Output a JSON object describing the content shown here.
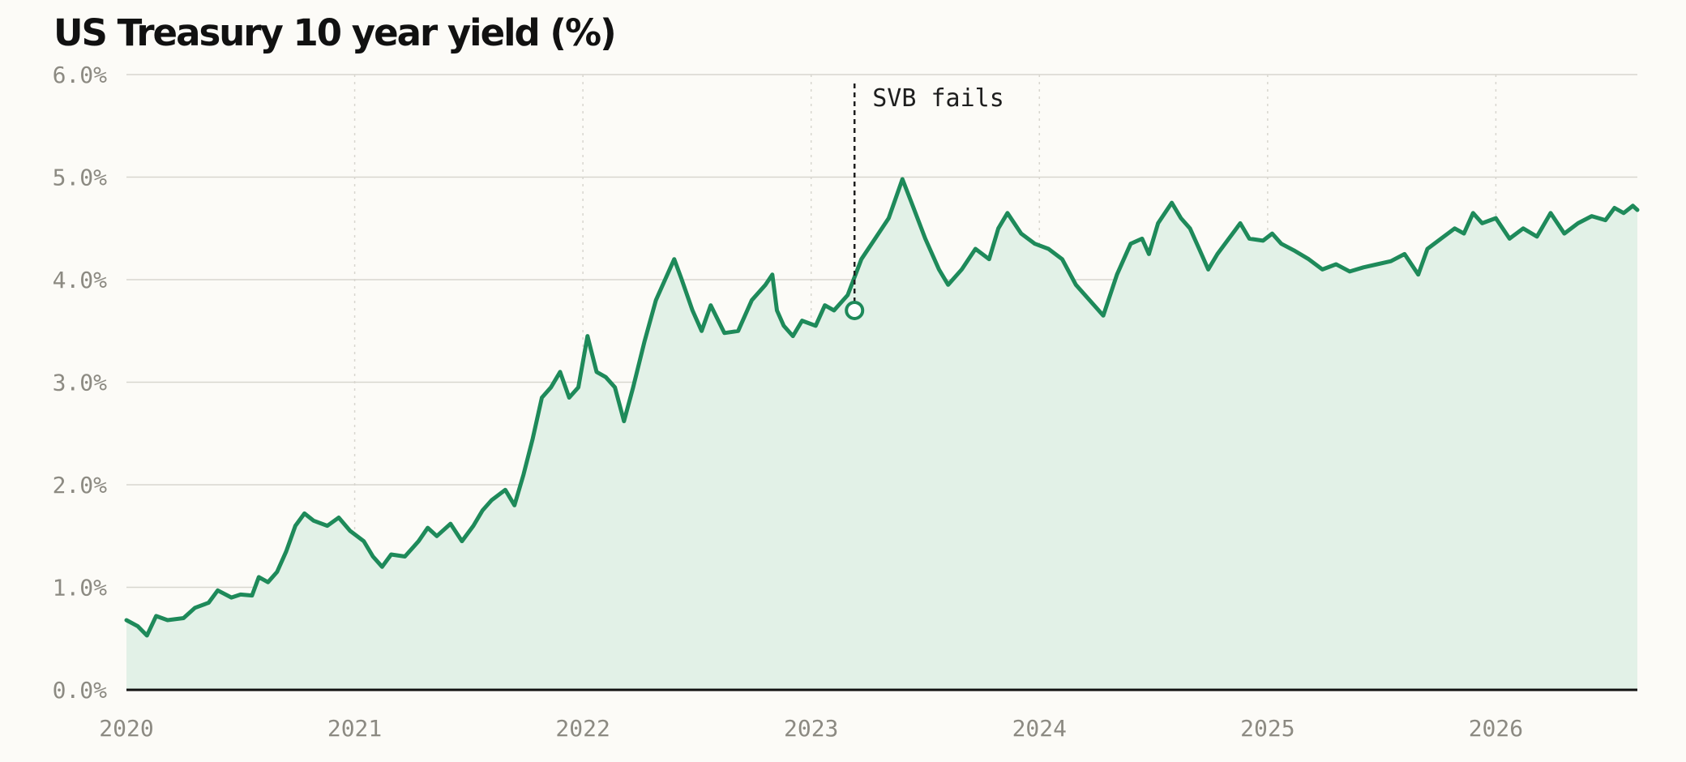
{
  "chart_data": {
    "type": "area",
    "title": "US Treasury 10 year yield (%)",
    "xlabel": "",
    "ylabel": "",
    "xlim": [
      2020.0,
      2026.62
    ],
    "ylim": [
      0,
      6
    ],
    "x_ticks": [
      2020,
      2021,
      2022,
      2023,
      2024,
      2025,
      2026
    ],
    "y_ticks": [
      0,
      1,
      2,
      3,
      4,
      5,
      6
    ],
    "y_tick_labels": [
      "0.0%",
      "1.0%",
      "2.0%",
      "3.0%",
      "4.0%",
      "5.0%",
      "6.0%"
    ],
    "grid": {
      "horizontal": true,
      "vertical_dotted": true
    },
    "series": [
      {
        "points": [
          [
            2020.0,
            0.68
          ],
          [
            2020.05,
            0.62
          ],
          [
            2020.09,
            0.53
          ],
          [
            2020.13,
            0.72
          ],
          [
            2020.18,
            0.68
          ],
          [
            2020.25,
            0.7
          ],
          [
            2020.3,
            0.8
          ],
          [
            2020.36,
            0.85
          ],
          [
            2020.4,
            0.97
          ],
          [
            2020.46,
            0.9
          ],
          [
            2020.5,
            0.93
          ],
          [
            2020.55,
            0.92
          ],
          [
            2020.58,
            1.1
          ],
          [
            2020.62,
            1.05
          ],
          [
            2020.66,
            1.15
          ],
          [
            2020.7,
            1.35
          ],
          [
            2020.74,
            1.6
          ],
          [
            2020.78,
            1.72
          ],
          [
            2020.82,
            1.65
          ],
          [
            2020.88,
            1.6
          ],
          [
            2020.93,
            1.68
          ],
          [
            2020.98,
            1.55
          ],
          [
            2021.04,
            1.45
          ],
          [
            2021.08,
            1.3
          ],
          [
            2021.12,
            1.2
          ],
          [
            2021.16,
            1.32
          ],
          [
            2021.22,
            1.3
          ],
          [
            2021.28,
            1.45
          ],
          [
            2021.32,
            1.58
          ],
          [
            2021.36,
            1.5
          ],
          [
            2021.42,
            1.62
          ],
          [
            2021.47,
            1.45
          ],
          [
            2021.52,
            1.6
          ],
          [
            2021.56,
            1.75
          ],
          [
            2021.6,
            1.85
          ],
          [
            2021.66,
            1.95
          ],
          [
            2021.7,
            1.8
          ],
          [
            2021.74,
            2.1
          ],
          [
            2021.78,
            2.45
          ],
          [
            2021.82,
            2.85
          ],
          [
            2021.86,
            2.95
          ],
          [
            2021.9,
            3.1
          ],
          [
            2021.94,
            2.85
          ],
          [
            2021.98,
            2.95
          ],
          [
            2022.02,
            3.45
          ],
          [
            2022.06,
            3.1
          ],
          [
            2022.1,
            3.05
          ],
          [
            2022.14,
            2.95
          ],
          [
            2022.18,
            2.62
          ],
          [
            2022.22,
            2.95
          ],
          [
            2022.27,
            3.4
          ],
          [
            2022.32,
            3.8
          ],
          [
            2022.36,
            4.0
          ],
          [
            2022.4,
            4.2
          ],
          [
            2022.43,
            4.02
          ],
          [
            2022.48,
            3.7
          ],
          [
            2022.52,
            3.5
          ],
          [
            2022.56,
            3.75
          ],
          [
            2022.62,
            3.48
          ],
          [
            2022.68,
            3.5
          ],
          [
            2022.74,
            3.8
          ],
          [
            2022.8,
            3.95
          ],
          [
            2022.83,
            4.05
          ],
          [
            2022.85,
            3.7
          ],
          [
            2022.88,
            3.55
          ],
          [
            2022.92,
            3.45
          ],
          [
            2022.96,
            3.6
          ],
          [
            2023.02,
            3.55
          ],
          [
            2023.06,
            3.75
          ],
          [
            2023.1,
            3.7
          ],
          [
            2023.16,
            3.85
          ],
          [
            2023.22,
            4.2
          ],
          [
            2023.28,
            4.4
          ],
          [
            2023.34,
            4.6
          ],
          [
            2023.4,
            4.98
          ],
          [
            2023.44,
            4.75
          ],
          [
            2023.5,
            4.4
          ],
          [
            2023.56,
            4.1
          ],
          [
            2023.6,
            3.95
          ],
          [
            2023.66,
            4.1
          ],
          [
            2023.72,
            4.3
          ],
          [
            2023.78,
            4.2
          ],
          [
            2023.82,
            4.5
          ],
          [
            2023.86,
            4.65
          ],
          [
            2023.92,
            4.45
          ],
          [
            2023.98,
            4.35
          ],
          [
            2024.04,
            4.3
          ],
          [
            2024.1,
            4.2
          ],
          [
            2024.16,
            3.95
          ],
          [
            2024.22,
            3.8
          ],
          [
            2024.28,
            3.65
          ],
          [
            2024.34,
            4.05
          ],
          [
            2024.4,
            4.35
          ],
          [
            2024.45,
            4.4
          ],
          [
            2024.48,
            4.25
          ],
          [
            2024.52,
            4.55
          ],
          [
            2024.58,
            4.75
          ],
          [
            2024.62,
            4.6
          ],
          [
            2024.66,
            4.5
          ],
          [
            2024.7,
            4.3
          ],
          [
            2024.74,
            4.1
          ],
          [
            2024.78,
            4.25
          ],
          [
            2024.83,
            4.4
          ],
          [
            2024.88,
            4.55
          ],
          [
            2024.92,
            4.4
          ],
          [
            2024.98,
            4.38
          ],
          [
            2025.02,
            4.45
          ],
          [
            2025.06,
            4.35
          ],
          [
            2025.12,
            4.28
          ],
          [
            2025.18,
            4.2
          ],
          [
            2025.24,
            4.1
          ],
          [
            2025.3,
            4.15
          ],
          [
            2025.36,
            4.08
          ],
          [
            2025.42,
            4.12
          ],
          [
            2025.48,
            4.15
          ],
          [
            2025.54,
            4.18
          ],
          [
            2025.6,
            4.25
          ],
          [
            2025.66,
            4.05
          ],
          [
            2025.7,
            4.3
          ],
          [
            2025.76,
            4.4
          ],
          [
            2025.82,
            4.5
          ],
          [
            2025.86,
            4.45
          ],
          [
            2025.9,
            4.65
          ],
          [
            2025.94,
            4.55
          ],
          [
            2026.0,
            4.6
          ],
          [
            2026.06,
            4.4
          ],
          [
            2026.12,
            4.5
          ],
          [
            2026.18,
            4.42
          ],
          [
            2026.24,
            4.65
          ],
          [
            2026.3,
            4.45
          ],
          [
            2026.36,
            4.55
          ],
          [
            2026.42,
            4.62
          ],
          [
            2026.48,
            4.58
          ],
          [
            2026.52,
            4.7
          ],
          [
            2026.56,
            4.65
          ],
          [
            2026.6,
            4.72
          ],
          [
            2026.62,
            4.68
          ]
        ]
      }
    ],
    "annotation": {
      "label": "SVB fails",
      "x": 2023.19,
      "y": 3.7
    }
  },
  "colors": {
    "line": "#1e8a5a",
    "fill": "#e2f1e7",
    "grid": "#d8d6cf",
    "axis": "#111111",
    "tick_text": "#8c8a82",
    "background": "#fcfbf7"
  }
}
